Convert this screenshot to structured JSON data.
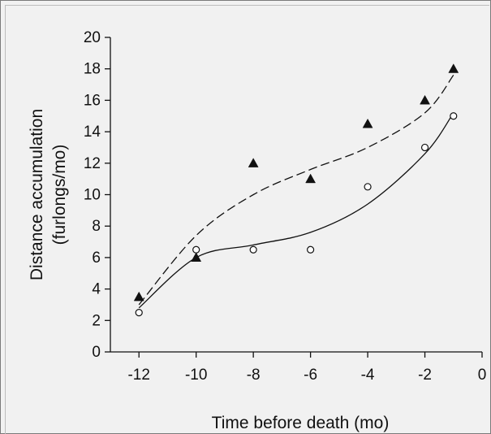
{
  "chart_data": {
    "type": "scatter",
    "title": "",
    "xlabel": "Time before death (mo)",
    "ylabel_line1": "Distance accumulation",
    "ylabel_line2": "(furlongs/mo)",
    "xlim": [
      -13,
      0
    ],
    "ylim": [
      0,
      20
    ],
    "xticks": [
      -12,
      -10,
      -8,
      -6,
      -4,
      -2,
      0
    ],
    "yticks": [
      0,
      2,
      4,
      6,
      8,
      10,
      12,
      14,
      16,
      18,
      20
    ],
    "grid": false,
    "legend": "none",
    "series": [
      {
        "marker": "filled-triangle",
        "color": "#111111",
        "line_style": "dashed",
        "x": [
          -12,
          -10,
          -8,
          -6,
          -4,
          -2,
          -1
        ],
        "y": [
          3.5,
          6.0,
          12.0,
          11.0,
          14.5,
          16.0,
          18.0
        ],
        "fit_curve": {
          "x": [
            -12,
            -10,
            -8,
            -6,
            -4,
            -2,
            -1
          ],
          "y": [
            3.0,
            7.4,
            10.0,
            11.6,
            13.0,
            15.2,
            17.6
          ]
        }
      },
      {
        "marker": "open-circle",
        "color": "#111111",
        "line_style": "solid",
        "x": [
          -12,
          -10,
          -8,
          -6,
          -4,
          -2,
          -1
        ],
        "y": [
          2.5,
          6.5,
          6.5,
          6.5,
          10.5,
          13.0,
          15.0
        ],
        "fit_curve": {
          "x": [
            -12,
            -10,
            -8,
            -6,
            -4,
            -2,
            -1
          ],
          "y": [
            2.8,
            6.0,
            6.8,
            7.6,
            9.4,
            12.6,
            15.2
          ]
        }
      }
    ]
  }
}
